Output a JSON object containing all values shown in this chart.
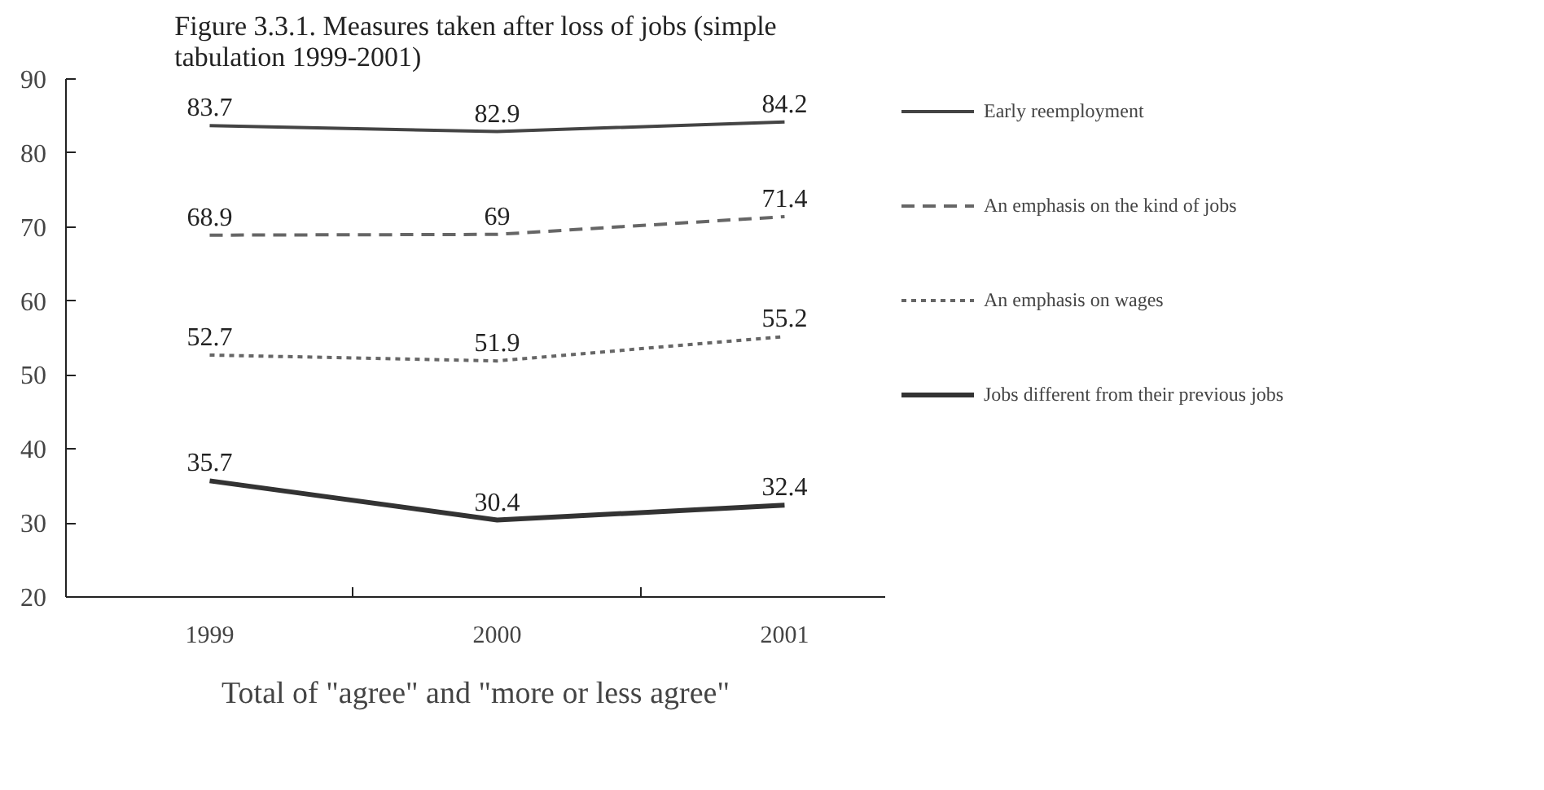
{
  "chart_data": {
    "type": "line",
    "title": "Figure 3.3.1. Measures taken after loss of jobs (simple tabulation 1999-2001)",
    "xlabel": "Total of \"agree\" and \"more or less agree\"",
    "categories": [
      "1999",
      "2000",
      "2001"
    ],
    "series": [
      {
        "name": "Early reemployment",
        "color": "#444444",
        "line_style": "solid",
        "values": [
          83.7,
          82.9,
          84.2
        ]
      },
      {
        "name": "An emphasis on the kind of jobs",
        "color": "#666666",
        "line_style": "dashed",
        "values": [
          68.9,
          69,
          71.4
        ]
      },
      {
        "name": "An emphasis on wages",
        "color": "#666666",
        "line_style": "dotted",
        "values": [
          52.7,
          51.9,
          55.2
        ]
      },
      {
        "name": "Jobs different from their previous jobs",
        "color": "#333333",
        "line_style": "solid",
        "values": [
          35.7,
          30.4,
          32.4
        ]
      }
    ],
    "ylim": [
      20,
      90
    ],
    "yticks": [
      20,
      30,
      40,
      50,
      60,
      70,
      80,
      90
    ],
    "data_labels": true,
    "legend": "right",
    "grid": false,
    "marker": "none"
  }
}
